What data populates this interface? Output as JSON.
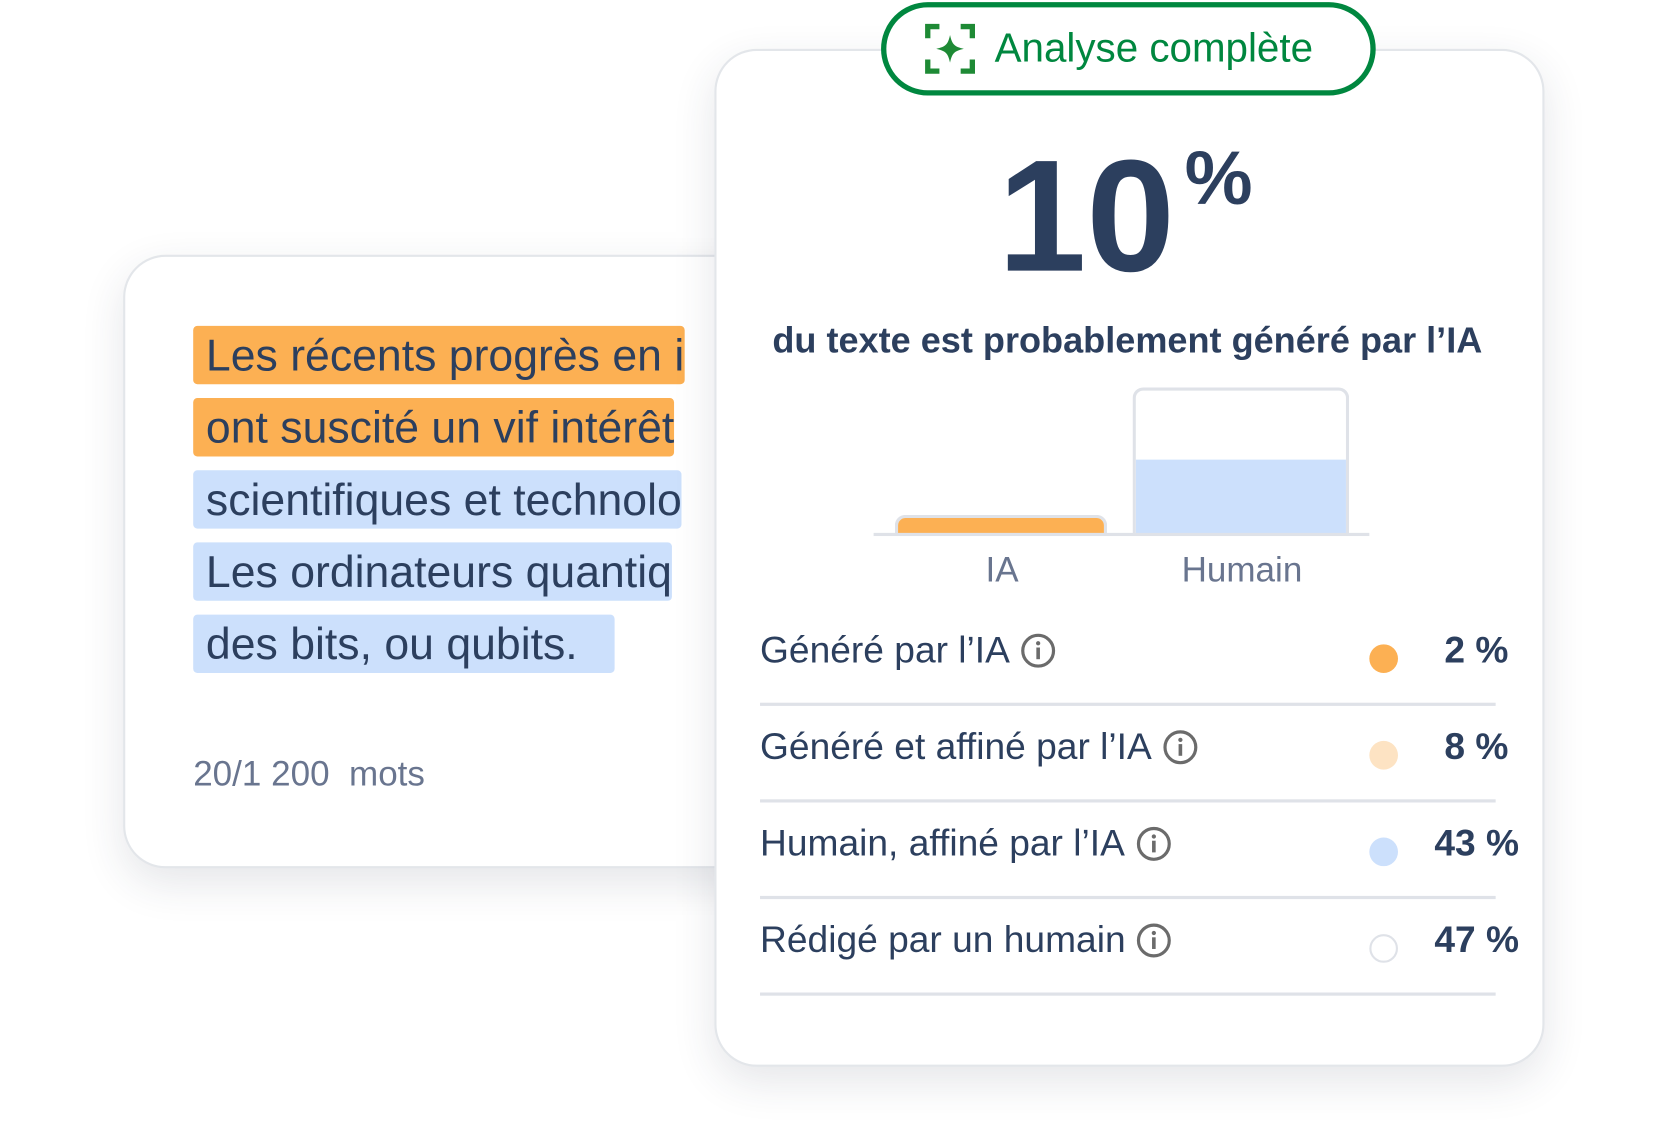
{
  "text_card": {
    "lines": [
      {
        "text": "Les récents progrès en i",
        "type": "ai"
      },
      {
        "text": "ont suscité un vif intérêt",
        "type": "ai"
      },
      {
        "text": "scientifiques et technolo",
        "type": "human-refined"
      },
      {
        "text": "Les ordinateurs quantiq",
        "type": "human-refined"
      },
      {
        "text": "des bits, ou qubits.",
        "type": "human-refined"
      }
    ],
    "word_count": "20/1 200  mots"
  },
  "result_card": {
    "badge_label": "Analyse complète",
    "badge_icon": "sparkle-scan-icon",
    "score": "10",
    "score_unit": "%",
    "subtitle": "du texte est probablement généré par l’IA",
    "rows": [
      {
        "label": "Généré par l’IA",
        "value": "2 %",
        "color": "#fcb053"
      },
      {
        "label": "Généré et affiné par l’IA",
        "value": "8 %",
        "color": "#fde3c3"
      },
      {
        "label": "Humain, affiné par l’IA",
        "value": "43 %",
        "color": "#cce0fc"
      },
      {
        "label": "Rédigé par un humain",
        "value": "47 %",
        "color": "#ffffff"
      }
    ]
  },
  "chart_data": {
    "type": "bar",
    "categories": [
      "IA",
      "Humain"
    ],
    "values": [
      0.13,
      0.51
    ],
    "value_unit": "visual fill fraction",
    "colors": [
      "#fcb053",
      "#cce0fc"
    ]
  },
  "colors": {
    "ai": "#fcb053",
    "human": "#cce0fc",
    "brand": "#00873f",
    "text": "#2c3f5e"
  }
}
